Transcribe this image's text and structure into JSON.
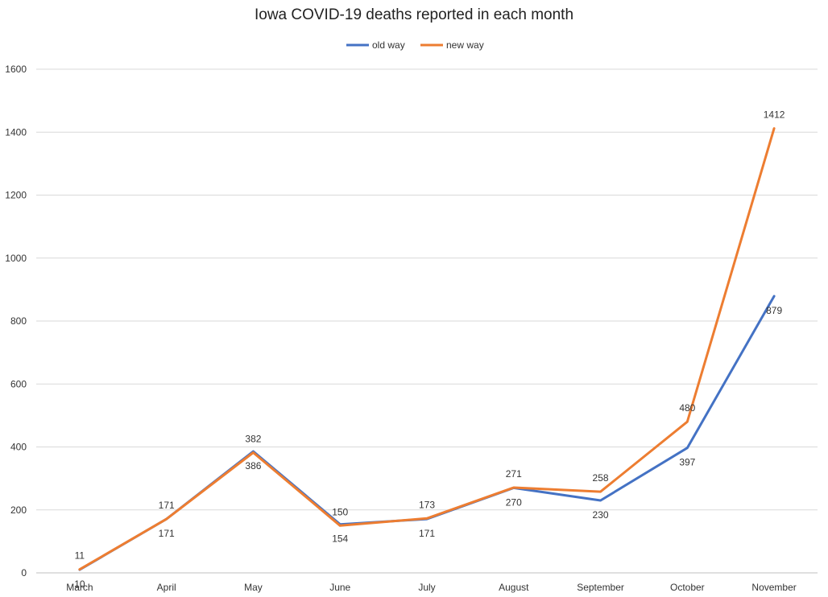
{
  "chart_data": {
    "type": "line",
    "title": "Iowa COVID-19 deaths reported in each month",
    "xlabel": "",
    "ylabel": "",
    "categories": [
      "March",
      "April",
      "May",
      "June",
      "July",
      "August",
      "September",
      "October",
      "November"
    ],
    "ylim": [
      0,
      1600
    ],
    "yticks": [
      0,
      200,
      400,
      600,
      800,
      1000,
      1200,
      1400,
      1600
    ],
    "grid": true,
    "legend_position": "top-center",
    "series": [
      {
        "name": "old way",
        "color": "#4472C4",
        "values": [
          10,
          171,
          386,
          154,
          171,
          270,
          230,
          397,
          879
        ],
        "label_position": "below"
      },
      {
        "name": "new way",
        "color": "#ED7D31",
        "values": [
          11,
          171,
          382,
          150,
          173,
          271,
          258,
          480,
          1412
        ],
        "label_position": "above"
      }
    ]
  }
}
